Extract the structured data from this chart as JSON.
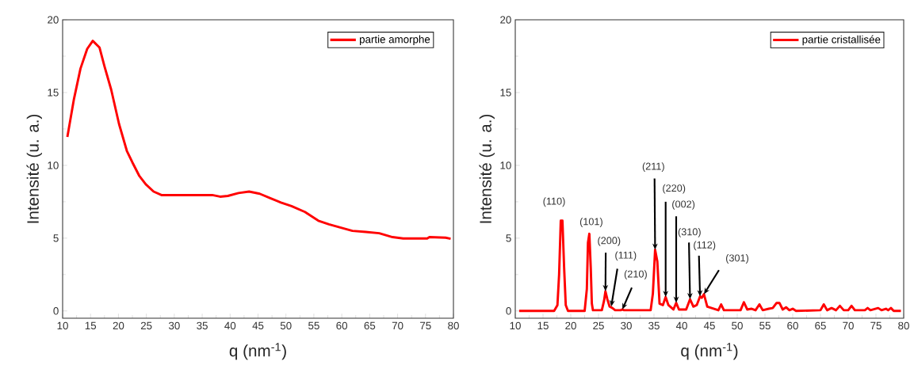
{
  "chart_data": [
    {
      "type": "line",
      "xlabel": "q (nm$^{-1}$)",
      "ylabel": "Intensité (u. a.)",
      "legend": "top right",
      "xlim": [
        10,
        80
      ],
      "ylim": [
        -0.5,
        20
      ],
      "xticks": [
        10,
        15,
        20,
        25,
        30,
        35,
        40,
        45,
        50,
        55,
        60,
        65,
        70,
        75,
        80
      ],
      "yticks": [
        0,
        5,
        10,
        15,
        20
      ],
      "x": [
        10.85,
        12.0,
        13.2,
        14.4,
        15.4,
        16.6,
        17.5,
        18.7,
        20.1,
        21.5,
        22.5,
        23.7,
        24.9,
        26.3,
        27.7,
        31.0,
        36.8,
        38.2,
        39.6,
        41.5,
        43.4,
        45.3,
        47.2,
        49.1,
        51.0,
        53.4,
        55.8,
        57.7,
        59.6,
        61.9,
        64.3,
        66.7,
        69.1,
        71.0,
        75.3,
        75.7,
        78.6,
        79.5
      ],
      "series": [
        {
          "name": "partie amorphe",
          "color": "#ff0000",
          "values": [
            11.95,
            14.5,
            16.65,
            18.0,
            18.55,
            18.1,
            16.8,
            15.2,
            12.85,
            11.0,
            10.2,
            9.3,
            8.7,
            8.2,
            7.96,
            7.96,
            7.96,
            7.85,
            7.9,
            8.1,
            8.2,
            8.05,
            7.75,
            7.45,
            7.2,
            6.8,
            6.2,
            5.95,
            5.75,
            5.5,
            5.43,
            5.34,
            5.07,
            4.98,
            4.98,
            5.07,
            5.03,
            4.96
          ]
        }
      ]
    },
    {
      "type": "line",
      "xlabel": "q (nm$^{-1}$)",
      "ylabel": "Intensité (u. a.)",
      "legend": "top right",
      "xlim": [
        10,
        80
      ],
      "ylim": [
        -0.5,
        20
      ],
      "xticks": [
        10,
        15,
        20,
        25,
        30,
        35,
        40,
        45,
        50,
        55,
        60,
        65,
        70,
        75,
        80
      ],
      "yticks": [
        0,
        5,
        10,
        15,
        20
      ],
      "x": [
        10.7,
        17.0,
        17.6,
        17.9,
        18.2,
        18.5,
        18.8,
        19.1,
        19.5,
        22.5,
        22.9,
        23.1,
        23.35,
        23.6,
        23.8,
        24.0,
        25.6,
        26.0,
        26.25,
        26.6,
        27.0,
        27.5,
        28.0,
        29.0,
        29.3,
        29.6,
        34.4,
        34.8,
        35.2,
        35.6,
        36.0,
        36.6,
        37.1,
        37.6,
        38.5,
        39.0,
        39.5,
        40.8,
        41.5,
        42.1,
        42.7,
        43.3,
        43.6,
        44.0,
        44.6,
        46.6,
        47.1,
        47.6,
        50.6,
        51.2,
        51.8,
        52.6,
        53.3,
        54.0,
        54.6,
        55.7,
        56.4,
        57.1,
        57.6,
        58.2,
        58.8,
        59.4,
        60.0,
        60.6,
        65.0,
        65.6,
        66.2,
        67.0,
        67.8,
        68.5,
        69.2,
        70.0,
        70.6,
        71.2,
        73.0,
        73.5,
        74.0,
        75.4,
        76.0,
        76.8,
        77.2,
        77.7,
        78.2,
        79.5
      ],
      "series": [
        {
          "name": "partie cristallisée",
          "color": "#ff0000",
          "values": [
            0.0,
            0.0,
            0.4,
            2.5,
            6.2,
            6.2,
            3.0,
            0.4,
            0.0,
            0.0,
            1.5,
            4.7,
            5.3,
            3.0,
            0.5,
            0.05,
            0.05,
            0.7,
            1.35,
            0.8,
            0.3,
            0.2,
            0.05,
            0.05,
            0.1,
            0.05,
            0.05,
            1.2,
            4.2,
            3.4,
            0.5,
            0.4,
            0.95,
            0.4,
            0.1,
            0.55,
            0.1,
            0.1,
            0.8,
            0.3,
            0.4,
            1.0,
            0.9,
            1.15,
            0.3,
            0.05,
            0.45,
            0.05,
            0.05,
            0.6,
            0.1,
            0.15,
            0.05,
            0.45,
            0.05,
            0.15,
            0.2,
            0.55,
            0.55,
            0.1,
            0.25,
            0.05,
            0.15,
            0.0,
            0.05,
            0.45,
            0.05,
            0.2,
            0.05,
            0.35,
            0.05,
            0.05,
            0.35,
            0.05,
            0.05,
            0.2,
            0.05,
            0.2,
            0.05,
            0.15,
            0.05,
            0.2,
            0.0,
            0.0
          ]
        }
      ],
      "annotations": [
        {
          "text": "(110)",
          "x": 18.5,
          "y": 6.2
        },
        {
          "text": "(101)",
          "x": 23.4,
          "y": 5.3
        },
        {
          "text": "(200)",
          "x": 26.25,
          "y": 1.35
        },
        {
          "text": "(111)",
          "x": 27.3,
          "y": 0.3
        },
        {
          "text": "(210)",
          "x": 29.3,
          "y": 0.1
        },
        {
          "text": "(211)",
          "x": 35.2,
          "y": 4.2
        },
        {
          "text": "(220)",
          "x": 37.1,
          "y": 0.95
        },
        {
          "text": "(002)",
          "x": 39.0,
          "y": 0.55
        },
        {
          "text": "(310)",
          "x": 41.5,
          "y": 0.8
        },
        {
          "text": "(112)",
          "x": 43.3,
          "y": 1.0
        },
        {
          "text": "(301)",
          "x": 44.0,
          "y": 1.15
        }
      ]
    }
  ]
}
